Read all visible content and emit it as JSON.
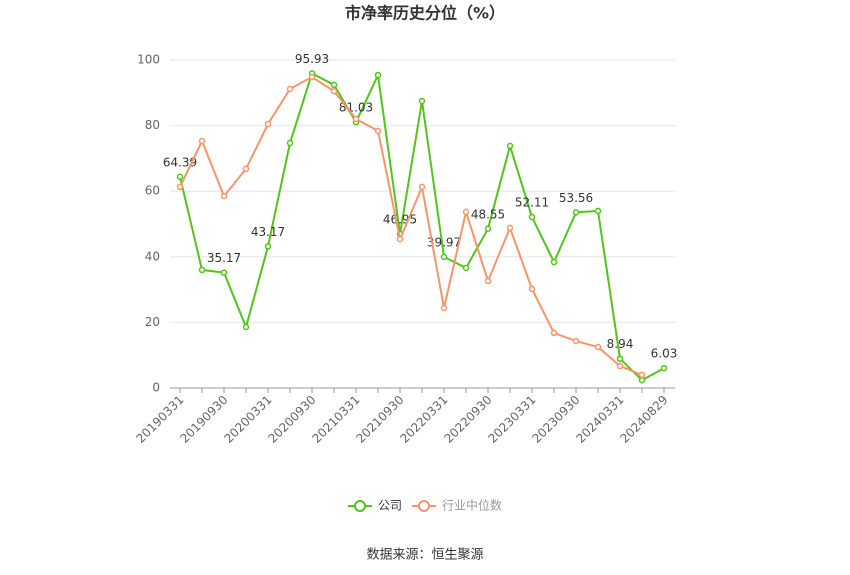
{
  "chart_data": {
    "type": "line",
    "title": "市净率历史分位（%）",
    "categories": [
      "20190331",
      null,
      "20190930",
      null,
      "20200331",
      null,
      "20200930",
      null,
      "20210331",
      null,
      "20210930",
      null,
      "20220331",
      null,
      "20220930",
      null,
      "20230331",
      null,
      "20230930",
      null,
      "20240331",
      null,
      "20240829"
    ],
    "series": [
      {
        "name": "公司",
        "color": "#52c41a",
        "values": [
          64.39,
          36.0,
          35.17,
          18.6,
          43.17,
          74.7,
          95.93,
          92.4,
          81.03,
          95.4,
          46.95,
          87.5,
          39.97,
          36.6,
          48.55,
          73.8,
          52.11,
          38.4,
          53.56,
          54.0,
          8.94,
          2.4,
          6.03
        ]
      },
      {
        "name": "行业中位数",
        "color": "#f5956a",
        "values": [
          61.3,
          75.3,
          58.5,
          66.8,
          80.5,
          91.2,
          94.8,
          90.5,
          82.0,
          78.4,
          45.4,
          61.3,
          24.4,
          53.7,
          32.6,
          48.8,
          30.2,
          16.8,
          14.3,
          12.5,
          6.7,
          4.0,
          null
        ]
      }
    ],
    "ylim": [
      0,
      100
    ],
    "yticks": [
      0,
      20,
      40,
      60,
      80,
      100
    ],
    "grid": true,
    "source": "数据来源：恒生聚源"
  }
}
